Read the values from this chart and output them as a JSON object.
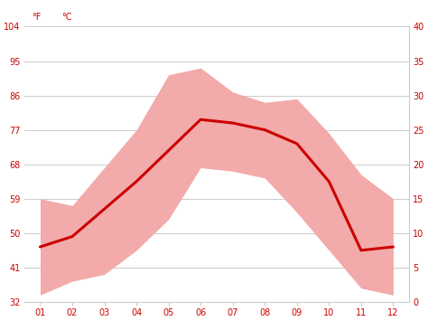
{
  "months": [
    1,
    2,
    3,
    4,
    5,
    6,
    7,
    8,
    9,
    10,
    11,
    12
  ],
  "month_labels": [
    "01",
    "02",
    "03",
    "04",
    "05",
    "06",
    "07",
    "08",
    "09",
    "10",
    "11",
    "12"
  ],
  "mean_temp_c": [
    8.0,
    9.5,
    13.5,
    17.5,
    22.0,
    26.5,
    26.0,
    25.0,
    23.0,
    17.5,
    7.5,
    8.0
  ],
  "max_temp_c": [
    15.0,
    14.0,
    19.5,
    25.0,
    33.0,
    34.0,
    30.5,
    29.0,
    29.5,
    24.5,
    18.5,
    15.0
  ],
  "min_temp_c": [
    1.0,
    3.0,
    4.0,
    7.5,
    12.0,
    19.5,
    19.0,
    18.0,
    13.0,
    7.5,
    2.0,
    1.0
  ],
  "yticks_c": [
    0,
    5,
    10,
    15,
    20,
    25,
    30,
    35,
    40
  ],
  "yticks_f": [
    32,
    41,
    50,
    59,
    68,
    77,
    86,
    95,
    104
  ],
  "ylim_c": [
    0,
    40
  ],
  "xlim": [
    0.5,
    12.5
  ],
  "line_color": "#cc0000",
  "fill_color": "#f2aaaa",
  "background_color": "#ffffff",
  "grid_color": "#cccccc",
  "label_color": "#cc0000",
  "tick_color": "#cc0000",
  "figsize": [
    4.74,
    3.55
  ],
  "dpi": 100,
  "label_f": "°F",
  "label_c": "°C"
}
